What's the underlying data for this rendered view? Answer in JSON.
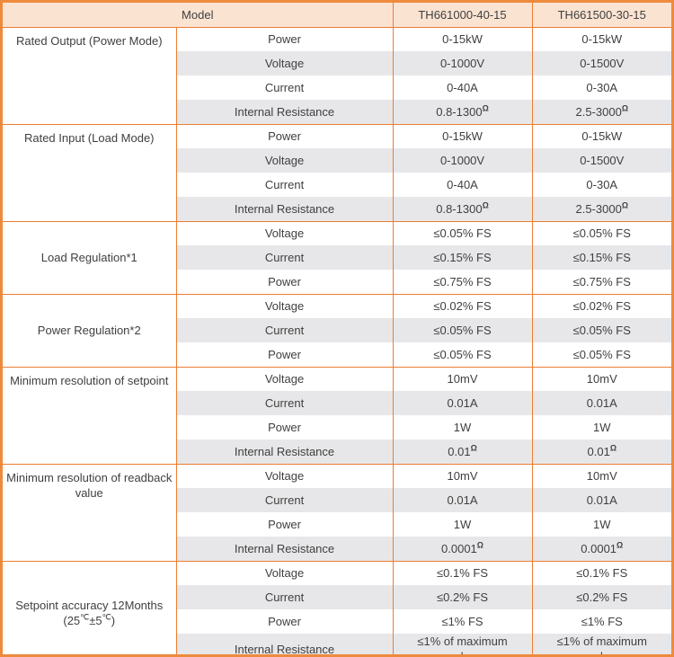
{
  "colors": {
    "border": "#ed7d31",
    "outer_border": "#ee8a3c",
    "header_bg": "#fbe3d2",
    "stripe": "#e7e7e9",
    "text": "#3f3f3f"
  },
  "header": {
    "model_label": "Model",
    "models": [
      "TH661000-40-15",
      "TH661500-30-15"
    ]
  },
  "groups": [
    {
      "label": "Rated Output (Power Mode)",
      "label_align": "top",
      "rows": [
        {
          "param": "Power",
          "values": [
            "0-15kW",
            "0-15kW"
          ]
        },
        {
          "param": "Voltage",
          "values": [
            "0-1000V",
            "0-1500V"
          ]
        },
        {
          "param": "Current",
          "values": [
            "0-40A",
            "0-30A"
          ]
        },
        {
          "param": "Internal Resistance",
          "values": [
            {
              "text": "0.8-1300",
              "sup": "Ω"
            },
            {
              "text": "2.5-3000",
              "sup": "Ω"
            }
          ]
        }
      ]
    },
    {
      "label": "Rated Input (Load Mode)",
      "label_align": "top",
      "rows": [
        {
          "param": "Power",
          "values": [
            "0-15kW",
            "0-15kW"
          ]
        },
        {
          "param": "Voltage",
          "values": [
            "0-1000V",
            "0-1500V"
          ]
        },
        {
          "param": "Current",
          "values": [
            "0-40A",
            "0-30A"
          ]
        },
        {
          "param": "Internal Resistance",
          "values": [
            {
              "text": "0.8-1300",
              "sup": "Ω"
            },
            {
              "text": "2.5-3000",
              "sup": "Ω"
            }
          ]
        }
      ]
    },
    {
      "label": "Load Regulation*1",
      "label_align": "middle",
      "rows": [
        {
          "param": "Voltage",
          "values": [
            "≤0.05% FS",
            "≤0.05% FS"
          ]
        },
        {
          "param": "Current",
          "values": [
            "≤0.15% FS",
            "≤0.15% FS"
          ]
        },
        {
          "param": "Power",
          "values": [
            "≤0.75% FS",
            "≤0.75% FS"
          ]
        }
      ]
    },
    {
      "label": "Power Regulation*2",
      "label_align": "middle",
      "rows": [
        {
          "param": "Voltage",
          "values": [
            "≤0.02% FS",
            "≤0.02% FS"
          ]
        },
        {
          "param": "Current",
          "values": [
            "≤0.05% FS",
            "≤0.05% FS"
          ]
        },
        {
          "param": "Power",
          "values": [
            "≤0.05% FS",
            "≤0.05% FS"
          ]
        }
      ]
    },
    {
      "label": "Minimum resolution of setpoint",
      "label_align": "top",
      "rows": [
        {
          "param": "Voltage",
          "values": [
            "10mV",
            "10mV"
          ]
        },
        {
          "param": "Current",
          "values": [
            "0.01A",
            "0.01A"
          ]
        },
        {
          "param": "Power",
          "values": [
            "1W",
            "1W"
          ]
        },
        {
          "param": "Internal Resistance",
          "values": [
            {
              "text": "0.01",
              "sup": "Ω"
            },
            {
              "text": "0.01",
              "sup": "Ω"
            }
          ]
        }
      ]
    },
    {
      "label": "Minimum resolution of readback value",
      "label_align": "top",
      "rows": [
        {
          "param": "Voltage",
          "values": [
            "10mV",
            "10mV"
          ]
        },
        {
          "param": "Current",
          "values": [
            "0.01A",
            "0.01A"
          ]
        },
        {
          "param": "Power",
          "values": [
            "1W",
            "1W"
          ]
        },
        {
          "param": "Internal Resistance",
          "values": [
            {
              "text": "0.0001",
              "sup": "Ω"
            },
            {
              "text": "0.0001",
              "sup": "Ω"
            }
          ]
        }
      ]
    },
    {
      "label": "Setpoint accuracy 12Months",
      "label_line2_parts": [
        {
          "t": "(25"
        },
        {
          "t": "℃",
          "sup": true
        },
        {
          "t": "±5"
        },
        {
          "t": "℃",
          "sup": true
        },
        {
          "t": ")"
        }
      ],
      "label_align": "middle",
      "rows": [
        {
          "param": "Voltage",
          "values": [
            "≤0.1% FS",
            "≤0.1% FS"
          ]
        },
        {
          "param": "Current",
          "values": [
            "≤0.2% FS",
            "≤0.2% FS"
          ]
        },
        {
          "param": "Power",
          "values": [
            "≤1% FS",
            "≤1% FS"
          ]
        },
        {
          "param": "Internal Resistance",
          "values": [
            {
              "text": "≤1% of maximum",
              "line2": "value"
            },
            {
              "text": "≤1% of maximum",
              "line2": "value"
            }
          ]
        }
      ]
    }
  ]
}
